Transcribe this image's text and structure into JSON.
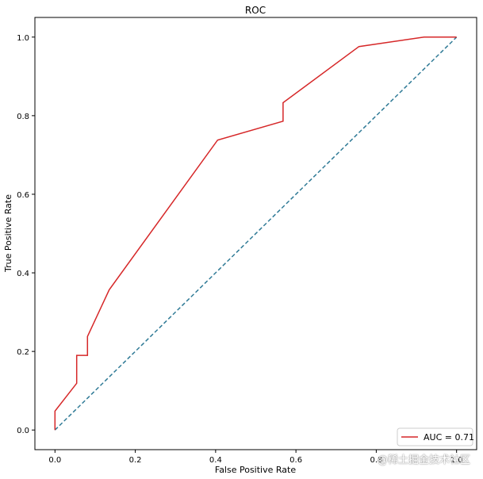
{
  "chart_data": {
    "type": "line",
    "title": "ROC",
    "xlabel": "False Positive Rate",
    "ylabel": "True Positive Rate",
    "xlim": [
      -0.05,
      1.05
    ],
    "ylim": [
      -0.05,
      1.05
    ],
    "xticks": [
      "0.0",
      "0.2",
      "0.4",
      "0.6",
      "0.8",
      "1.0"
    ],
    "yticks": [
      "0.0",
      "0.2",
      "0.4",
      "0.6",
      "0.8",
      "1.0"
    ],
    "grid": false,
    "legend_position": "lower-right",
    "series": [
      {
        "name": "AUC = 0.71",
        "color": "#d62728",
        "style": "solid",
        "x": [
          0.0,
          0.0,
          0.054,
          0.054,
          0.081,
          0.081,
          0.135,
          0.405,
          0.568,
          0.568,
          0.757,
          0.919,
          1.0
        ],
        "y": [
          0.0,
          0.048,
          0.119,
          0.19,
          0.19,
          0.238,
          0.357,
          0.738,
          0.786,
          0.833,
          0.976,
          1.0,
          1.0
        ]
      },
      {
        "name": "",
        "color": "#2f7a96",
        "style": "dashed",
        "x": [
          0.0,
          1.0
        ],
        "y": [
          0.0,
          1.0
        ]
      }
    ]
  },
  "watermark": "@稀土掘金技术社区"
}
